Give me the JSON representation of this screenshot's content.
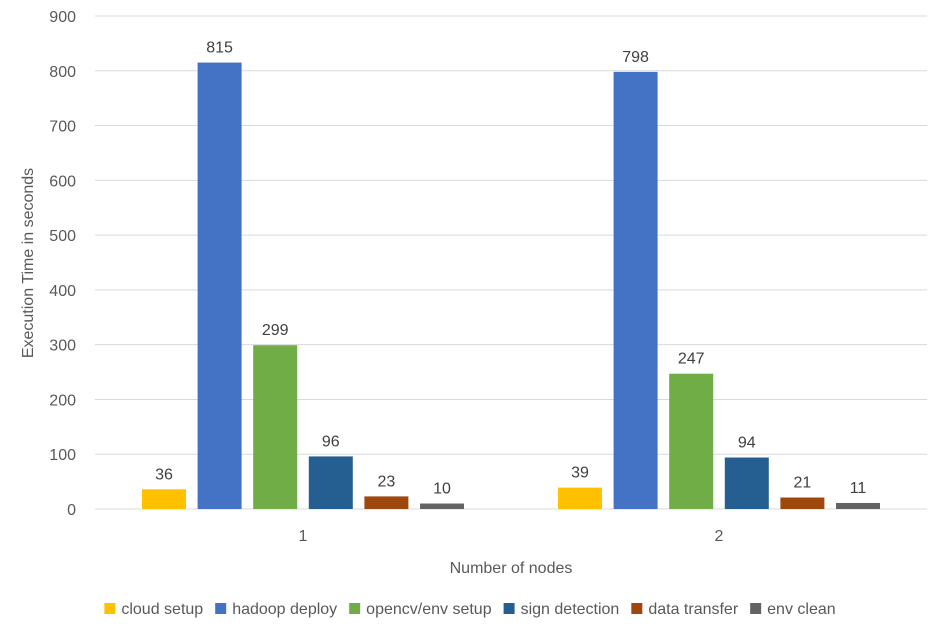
{
  "chart_data": {
    "type": "bar",
    "title": "",
    "xlabel": "Number of nodes",
    "ylabel": "Execution Time in seconds",
    "categories": [
      "1",
      "2"
    ],
    "ylim": [
      0,
      900
    ],
    "yticks": [
      0,
      100,
      200,
      300,
      400,
      500,
      600,
      700,
      800,
      900
    ],
    "grid": true,
    "legend_position": "bottom",
    "series": [
      {
        "name": "cloud setup",
        "color": "#FFC000",
        "values": [
          36,
          39
        ]
      },
      {
        "name": "hadoop deploy",
        "color": "#4472C4",
        "values": [
          815,
          798
        ]
      },
      {
        "name": "opencv/env setup",
        "color": "#70AD47",
        "values": [
          299,
          247
        ]
      },
      {
        "name": "sign detection",
        "color": "#255E91",
        "values": [
          96,
          94
        ]
      },
      {
        "name": "data transfer",
        "color": "#9E480E",
        "values": [
          23,
          21
        ]
      },
      {
        "name": "env clean",
        "color": "#636363",
        "values": [
          10,
          11
        ]
      }
    ]
  }
}
